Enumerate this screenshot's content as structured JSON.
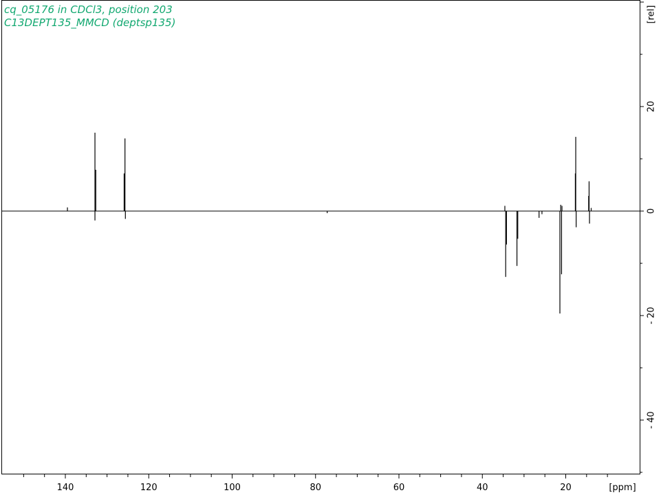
{
  "colors": {
    "title": "#12a870",
    "axis": "#000000",
    "spectrum": "#000000"
  },
  "title_lines": [
    "cq_05176 in CDCl3, position 203",
    "C13DEPT135_MMCD (deptsp135)"
  ],
  "chart_data": {
    "type": "line",
    "title": "cq_05176 in CDCl3, position 203",
    "subtitle": "C13DEPT135_MMCD (deptsp135)",
    "xlabel": "[ppm]",
    "ylabel": "[rel]",
    "xlim": [
      154.5,
      9
    ],
    "ylim": [
      -50,
      40
    ],
    "x_reversed": true,
    "grid": false,
    "x_ticks": [
      140,
      120,
      100,
      80,
      60,
      40,
      20
    ],
    "x_tick_labels": [
      "140",
      "120",
      "100",
      "80",
      "60",
      "40",
      "20"
    ],
    "y_ticks": [
      20,
      0,
      -20,
      -40
    ],
    "y_tick_labels": [
      "20",
      "0",
      "- 20",
      "- 40"
    ],
    "peaks": [
      {
        "ppm": 139.5,
        "height": 0.7
      },
      {
        "ppm": 132.9,
        "height": 15.0
      },
      {
        "ppm": 132.7,
        "height": 7.9
      },
      {
        "ppm": 132.9,
        "height": -1.8
      },
      {
        "ppm": 125.7,
        "height": 13.9
      },
      {
        "ppm": 125.9,
        "height": 7.2
      },
      {
        "ppm": 125.6,
        "height": -1.5
      },
      {
        "ppm": 77.2,
        "height": -0.4
      },
      {
        "ppm": 34.4,
        "height": -12.6
      },
      {
        "ppm": 34.6,
        "height": 1.0
      },
      {
        "ppm": 34.2,
        "height": -6.4
      },
      {
        "ppm": 31.7,
        "height": -10.5
      },
      {
        "ppm": 31.5,
        "height": -5.3
      },
      {
        "ppm": 26.4,
        "height": -1.3
      },
      {
        "ppm": 25.7,
        "height": -0.6
      },
      {
        "ppm": 21.4,
        "height": -19.6
      },
      {
        "ppm": 21.0,
        "height": -12.1
      },
      {
        "ppm": 21.2,
        "height": 1.2
      },
      {
        "ppm": 20.9,
        "height": 1.0
      },
      {
        "ppm": 17.6,
        "height": 14.2
      },
      {
        "ppm": 17.7,
        "height": 7.2
      },
      {
        "ppm": 17.5,
        "height": -3.1
      },
      {
        "ppm": 14.4,
        "height": 5.7
      },
      {
        "ppm": 14.5,
        "height": 2.9
      },
      {
        "ppm": 14.3,
        "height": -2.4
      },
      {
        "ppm": 13.9,
        "height": 0.6
      }
    ]
  }
}
